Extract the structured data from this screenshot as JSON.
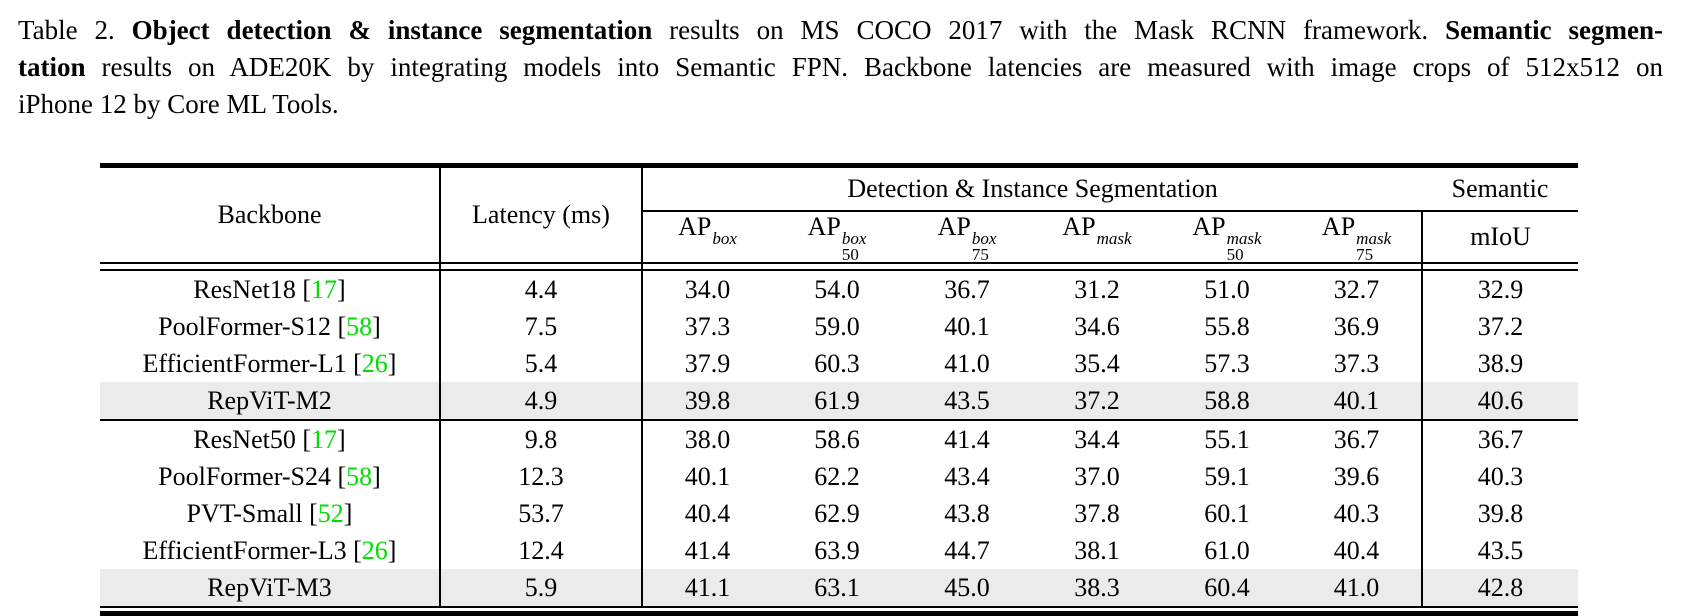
{
  "colors": {
    "citation_green": "#00dd00",
    "highlight_row": "#ebebeb",
    "rule_black": "#000000"
  },
  "caption": {
    "lines": [
      {
        "justify": true,
        "parts": [
          {
            "t": "Table 2. ",
            "b": false
          },
          {
            "t": "Object detection & instance segmentation",
            "b": true
          },
          {
            "t": " results on MS COCO 2017 with the Mask RCNN framework. ",
            "b": false
          },
          {
            "t": "Semantic segmen-",
            "b": true
          }
        ]
      },
      {
        "justify": true,
        "parts": [
          {
            "t": "tation",
            "b": true
          },
          {
            "t": " results on ADE20K by integrating models into Semantic FPN. Backbone latencies are measured with image crops of 512x512 on",
            "b": false
          }
        ]
      },
      {
        "justify": false,
        "parts": [
          {
            "t": "iPhone 12 by Core ML Tools.",
            "b": false
          }
        ]
      }
    ]
  },
  "table": {
    "header": {
      "backbone": "Backbone",
      "latency": "Latency (ms)",
      "group_detection": "Detection & Instance Segmentation",
      "group_semantic": "Semantic",
      "miou": "mIoU",
      "metric_cols": [
        {
          "base": "AP",
          "sup": "box",
          "sub": ""
        },
        {
          "base": "AP",
          "sup": "box",
          "sub": "50"
        },
        {
          "base": "AP",
          "sup": "box",
          "sub": "75"
        },
        {
          "base": "AP",
          "sup": "mask",
          "sub": ""
        },
        {
          "base": "AP",
          "sup": "mask",
          "sub": "50"
        },
        {
          "base": "AP",
          "sup": "mask",
          "sub": "75"
        }
      ]
    },
    "groups": [
      {
        "rows": [
          {
            "backbone": "ResNet18",
            "cite": "17",
            "latency": "4.4",
            "values": [
              "34.0",
              "54.0",
              "36.7",
              "31.2",
              "51.0",
              "32.7"
            ],
            "miou": "32.9",
            "highlight": false
          },
          {
            "backbone": "PoolFormer-S12",
            "cite": "58",
            "latency": "7.5",
            "values": [
              "37.3",
              "59.0",
              "40.1",
              "34.6",
              "55.8",
              "36.9"
            ],
            "miou": "37.2",
            "highlight": false
          },
          {
            "backbone": "EfficientFormer-L1",
            "cite": "26",
            "latency": "5.4",
            "values": [
              "37.9",
              "60.3",
              "41.0",
              "35.4",
              "57.3",
              "37.3"
            ],
            "miou": "38.9",
            "highlight": false
          },
          {
            "backbone": "RepViT-M2",
            "cite": "",
            "latency": "4.9",
            "values": [
              "39.8",
              "61.9",
              "43.5",
              "37.2",
              "58.8",
              "40.1"
            ],
            "miou": "40.6",
            "highlight": true
          }
        ]
      },
      {
        "rows": [
          {
            "backbone": "ResNet50",
            "cite": "17",
            "latency": "9.8",
            "values": [
              "38.0",
              "58.6",
              "41.4",
              "34.4",
              "55.1",
              "36.7"
            ],
            "miou": "36.7",
            "highlight": false
          },
          {
            "backbone": "PoolFormer-S24",
            "cite": "58",
            "latency": "12.3",
            "values": [
              "40.1",
              "62.2",
              "43.4",
              "37.0",
              "59.1",
              "39.6"
            ],
            "miou": "40.3",
            "highlight": false
          },
          {
            "backbone": "PVT-Small",
            "cite": "52",
            "latency": "53.7",
            "values": [
              "40.4",
              "62.9",
              "43.8",
              "37.8",
              "60.1",
              "40.3"
            ],
            "miou": "39.8",
            "highlight": false
          },
          {
            "backbone": "EfficientFormer-L3",
            "cite": "26",
            "latency": "12.4",
            "values": [
              "41.4",
              "63.9",
              "44.7",
              "38.1",
              "61.0",
              "40.4"
            ],
            "miou": "43.5",
            "highlight": false
          },
          {
            "backbone": "RepViT-M3",
            "cite": "",
            "latency": "5.9",
            "values": [
              "41.1",
              "63.1",
              "45.0",
              "38.3",
              "60.4",
              "41.0"
            ],
            "miou": "42.8",
            "highlight": true
          }
        ]
      }
    ]
  }
}
